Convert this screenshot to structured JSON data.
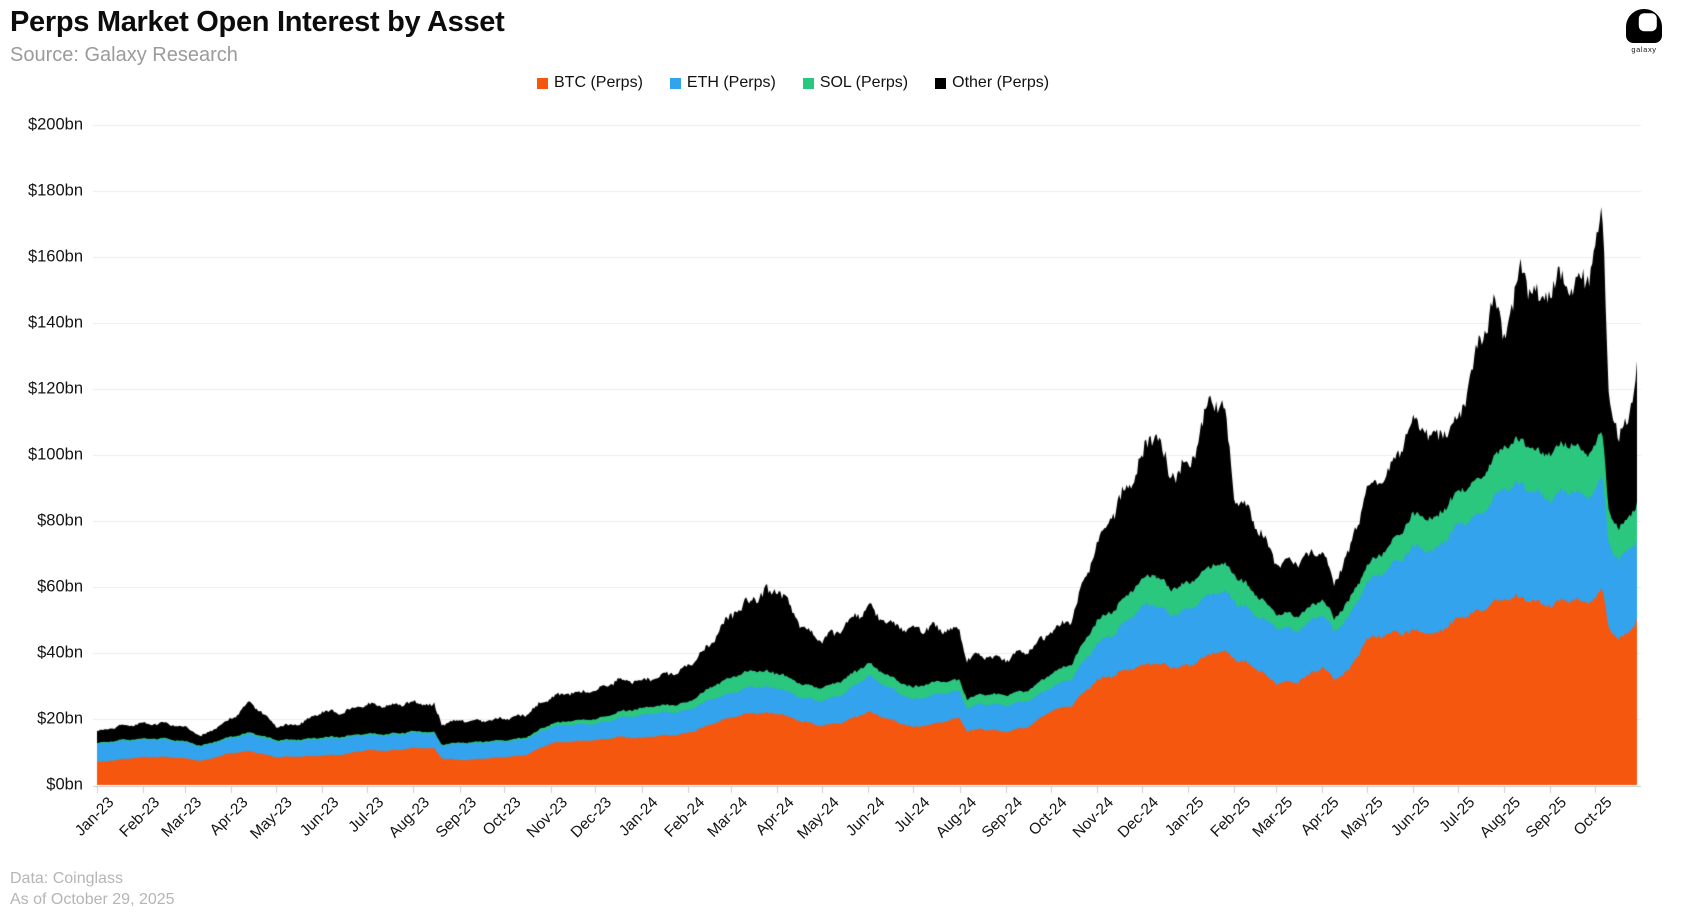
{
  "header": {
    "title": "Perps Market Open Interest by Asset",
    "subtitle": "Source: Galaxy Research"
  },
  "logo": {
    "label": "galaxy"
  },
  "footer": {
    "line1": "Data: Coinglass",
    "line2": "As of October 29, 2025"
  },
  "chart_data": {
    "type": "area",
    "stacked": true,
    "title": "Perps Market Open Interest by Asset",
    "unit": "$bn",
    "ylim": [
      0,
      200
    ],
    "grid": "horizontal",
    "legend_position": "top",
    "x_range": [
      "2023-01-01",
      "2025-10-29"
    ],
    "y_ticks": [
      {
        "label": "$0bn",
        "value": 0
      },
      {
        "label": "$20bn",
        "value": 20
      },
      {
        "label": "$40bn",
        "value": 40
      },
      {
        "label": "$60bn",
        "value": 60
      },
      {
        "label": "$80bn",
        "value": 80
      },
      {
        "label": "$100bn",
        "value": 100
      },
      {
        "label": "$120bn",
        "value": 120
      },
      {
        "label": "$140bn",
        "value": 140
      },
      {
        "label": "$160bn",
        "value": 160
      },
      {
        "label": "$180bn",
        "value": 180
      },
      {
        "label": "$200bn",
        "value": 200
      }
    ],
    "x_month_ticks": [
      {
        "label": "Jan-23",
        "day": 0
      },
      {
        "label": "Feb-23",
        "day": 31
      },
      {
        "label": "Mar-23",
        "day": 59
      },
      {
        "label": "Apr-23",
        "day": 90
      },
      {
        "label": "May-23",
        "day": 120
      },
      {
        "label": "Jun-23",
        "day": 151
      },
      {
        "label": "Jul-23",
        "day": 181
      },
      {
        "label": "Aug-23",
        "day": 212
      },
      {
        "label": "Sep-23",
        "day": 243
      },
      {
        "label": "Oct-23",
        "day": 273
      },
      {
        "label": "Nov-23",
        "day": 304
      },
      {
        "label": "Dec-23",
        "day": 334
      },
      {
        "label": "Jan-24",
        "day": 365
      },
      {
        "label": "Feb-24",
        "day": 396
      },
      {
        "label": "Mar-24",
        "day": 425
      },
      {
        "label": "Apr-24",
        "day": 456
      },
      {
        "label": "May-24",
        "day": 486
      },
      {
        "label": "Jun-24",
        "day": 517
      },
      {
        "label": "Jul-24",
        "day": 547
      },
      {
        "label": "Aug-24",
        "day": 578
      },
      {
        "label": "Sep-24",
        "day": 609
      },
      {
        "label": "Oct-24",
        "day": 639
      },
      {
        "label": "Nov-24",
        "day": 670
      },
      {
        "label": "Dec-24",
        "day": 700
      },
      {
        "label": "Jan-25",
        "day": 731
      },
      {
        "label": "Feb-25",
        "day": 762
      },
      {
        "label": "Mar-25",
        "day": 790
      },
      {
        "label": "Apr-25",
        "day": 821
      },
      {
        "label": "May-25",
        "day": 851
      },
      {
        "label": "Jun-25",
        "day": 882
      },
      {
        "label": "Jul-25",
        "day": 912
      },
      {
        "label": "Aug-25",
        "day": 943
      },
      {
        "label": "Sep-25",
        "day": 974
      },
      {
        "label": "Oct-25",
        "day": 1004
      }
    ],
    "total_days": 1033,
    "sample_days": [
      0,
      14,
      31,
      45,
      59,
      70,
      90,
      103,
      120,
      134,
      151,
      165,
      181,
      195,
      212,
      226,
      231,
      243,
      257,
      273,
      287,
      304,
      318,
      334,
      348,
      365,
      379,
      396,
      410,
      425,
      439,
      456,
      470,
      486,
      500,
      517,
      531,
      547,
      561,
      578,
      583,
      592,
      609,
      623,
      639,
      653,
      670,
      684,
      700,
      708,
      719,
      731,
      748,
      756,
      762,
      776,
      790,
      804,
      821,
      829,
      840,
      851,
      865,
      882,
      896,
      912,
      926,
      936,
      943,
      955,
      967,
      974,
      988,
      998,
      1009,
      1013,
      1020,
      1027,
      1032
    ],
    "series": [
      {
        "name": "BTC (Perps)",
        "color": "#F6570F",
        "values": [
          7.0,
          7.6,
          8.4,
          8.6,
          8.1,
          7.2,
          9.7,
          10.3,
          8.4,
          8.6,
          9.0,
          9.2,
          10.6,
          10.4,
          11.2,
          11.0,
          8.1,
          7.6,
          7.9,
          8.4,
          9.1,
          12.7,
          13.1,
          13.6,
          14.6,
          14.2,
          15.0,
          15.7,
          18.0,
          20.5,
          22.0,
          21.7,
          19.5,
          18.1,
          19.0,
          22.0,
          20.0,
          17.5,
          18.5,
          20.5,
          16.5,
          17.0,
          16.1,
          17.5,
          22.6,
          24.0,
          31.7,
          34.0,
          36.2,
          37.0,
          36.0,
          36.2,
          40.0,
          40.0,
          38.5,
          36.0,
          30.8,
          31.0,
          36.0,
          32.0,
          35.0,
          44.0,
          46.0,
          46.8,
          45.0,
          50.5,
          53.0,
          55.0,
          55.8,
          57.0,
          55.0,
          54.9,
          56.0,
          55.0,
          59.0,
          48.0,
          44.0,
          47.0,
          50.0
        ]
      },
      {
        "name": "ETH (Perps)",
        "color": "#33A3EE",
        "values": [
          5.5,
          5.6,
          5.2,
          5.3,
          4.8,
          4.3,
          4.6,
          5.2,
          4.7,
          4.8,
          5.1,
          5.0,
          4.6,
          4.7,
          4.6,
          4.5,
          3.9,
          5.0,
          4.8,
          4.7,
          4.8,
          4.9,
          5.1,
          4.9,
          5.6,
          6.9,
          7.0,
          6.9,
          7.5,
          7.3,
          8.0,
          7.7,
          7.2,
          7.5,
          8.5,
          11.0,
          9.6,
          8.2,
          8.8,
          8.2,
          7.0,
          7.5,
          8.0,
          8.0,
          7.0,
          8.0,
          11.1,
          13.0,
          17.5,
          18.0,
          16.0,
          17.0,
          18.0,
          18.0,
          17.5,
          16.0,
          16.9,
          15.5,
          16.5,
          14.5,
          16.0,
          17.0,
          20.0,
          25.0,
          25.0,
          28.5,
          29.0,
          31.0,
          33.5,
          34.5,
          33.0,
          32.0,
          33.0,
          32.0,
          34.0,
          26.0,
          24.0,
          25.0,
          24.0
        ]
      },
      {
        "name": "SOL (Perps)",
        "color": "#2BC77E",
        "values": [
          0.3,
          0.3,
          0.35,
          0.35,
          0.35,
          0.3,
          0.4,
          0.5,
          0.4,
          0.4,
          0.4,
          0.4,
          0.4,
          0.4,
          0.4,
          0.4,
          0.3,
          0.3,
          0.35,
          0.4,
          0.5,
          0.9,
          1.2,
          1.5,
          1.8,
          2.1,
          2.2,
          2.4,
          3.5,
          4.9,
          5.0,
          4.5,
          4.2,
          4.0,
          4.3,
          3.7,
          3.5,
          3.7,
          3.8,
          3.4,
          2.8,
          3.0,
          3.1,
          3.2,
          4.2,
          4.5,
          7.0,
          7.5,
          8.1,
          9.0,
          8.0,
          8.1,
          8.5,
          8.5,
          8.0,
          6.5,
          4.2,
          4.5,
          4.5,
          4.0,
          5.0,
          5.0,
          6.5,
          10.0,
          9.5,
          10.0,
          11.0,
          12.0,
          12.5,
          13.5,
          12.5,
          14.5,
          14.0,
          13.0,
          14.0,
          10.0,
          9.5,
          10.0,
          11.0
        ]
      },
      {
        "name": "Other (Perps)",
        "color": "#000000",
        "values": [
          3.5,
          4.0,
          4.7,
          4.5,
          4.2,
          2.9,
          5.5,
          9.0,
          4.2,
          4.6,
          7.7,
          7.3,
          9.0,
          8.4,
          8.8,
          8.3,
          6.4,
          6.6,
          6.2,
          6.7,
          7.0,
          8.0,
          8.4,
          8.8,
          9.4,
          8.5,
          9.0,
          10.6,
          13.0,
          19.2,
          21.0,
          25.8,
          19.0,
          14.1,
          16.0,
          17.6,
          15.4,
          17.4,
          17.0,
          14.8,
          12.0,
          11.5,
          11.1,
          12.0,
          12.4,
          13.5,
          24.1,
          30.0,
          36.2,
          45.0,
          35.0,
          33.7,
          51.5,
          45.5,
          25.0,
          21.5,
          15.1,
          17.0,
          15.0,
          10.4,
          15.0,
          24.0,
          22.5,
          28.0,
          25.5,
          21.0,
          40.0,
          48.0,
          33.3,
          53.0,
          44.5,
          49.5,
          49.0,
          54.0,
          66.0,
          35.0,
          26.5,
          31.0,
          40.0
        ]
      }
    ]
  }
}
